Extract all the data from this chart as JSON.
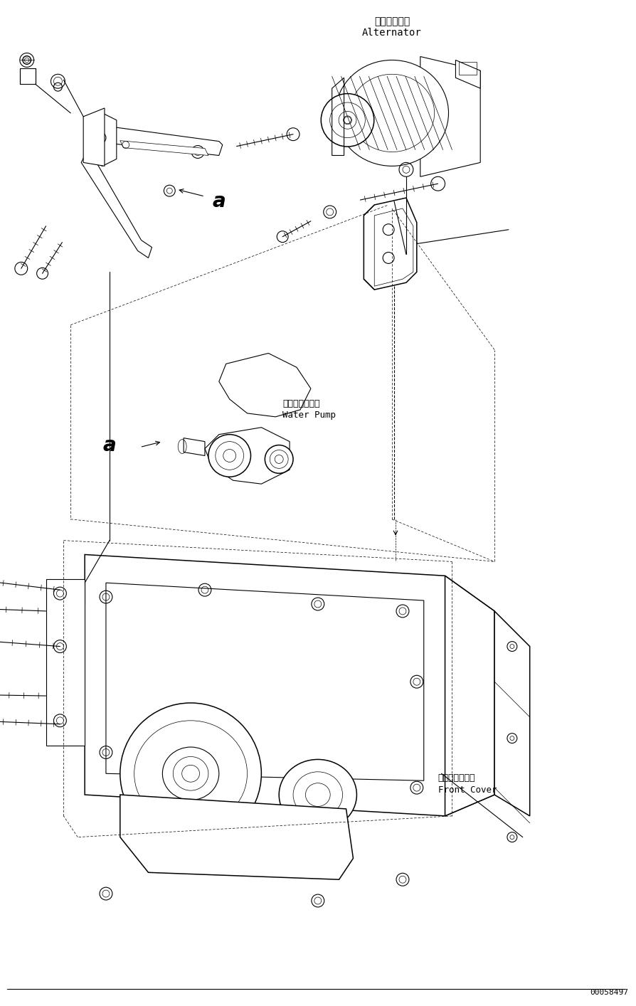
{
  "background_color": "#ffffff",
  "line_color": "#000000",
  "figsize": [
    8.94,
    14.14
  ],
  "dpi": 100,
  "labels": {
    "alternator_jp": "オルタネータ",
    "alternator_en": "Alternator",
    "water_pump_jp": "ウォータポンプ",
    "water_pump_en": "Water Pump",
    "front_cover_jp": "フロントカバー",
    "front_cover_en": "Front Cover",
    "label_a1": "a",
    "label_a2": "a",
    "part_number": "00058497"
  },
  "font_sizes": {
    "jp_label": 9,
    "en_label": 9,
    "a_label": 20,
    "part_number": 8
  }
}
